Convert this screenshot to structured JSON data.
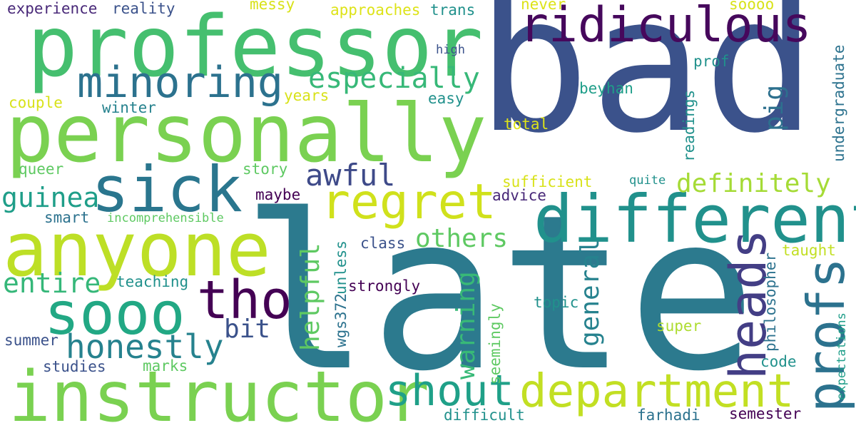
{
  "palette": {
    "bg": "#ffffff",
    "dark_purple": "#440154",
    "indigo": "#433e85",
    "navy": "#3b528b",
    "blue": "#2c728e",
    "teal": "#21918c",
    "green_teal": "#28ae80",
    "green": "#5ec962",
    "lime": "#addc30",
    "yellow": "#d6e21a"
  },
  "words": [
    {
      "id": "bad",
      "text": "bad"
    },
    {
      "id": "late",
      "text": "late"
    },
    {
      "id": "professor",
      "text": "professor"
    },
    {
      "id": "personally",
      "text": "personally"
    },
    {
      "id": "anyone",
      "text": "anyone"
    },
    {
      "id": "instructor",
      "text": "instructor"
    },
    {
      "id": "different",
      "text": "different"
    },
    {
      "id": "department",
      "text": "department"
    },
    {
      "id": "ridiculous",
      "text": "ridiculous"
    },
    {
      "id": "sick",
      "text": "sick"
    },
    {
      "id": "sooo",
      "text": "sooo"
    },
    {
      "id": "regret",
      "text": "regret"
    },
    {
      "id": "minoring",
      "text": "minoring"
    },
    {
      "id": "profs",
      "text": "profs"
    },
    {
      "id": "heads",
      "text": "heads"
    },
    {
      "id": "tho",
      "text": "tho"
    },
    {
      "id": "shout",
      "text": "shout"
    },
    {
      "id": "honestly",
      "text": "honestly"
    },
    {
      "id": "especially",
      "text": "especially"
    },
    {
      "id": "awful",
      "text": "awful"
    },
    {
      "id": "definitely",
      "text": "definitely"
    },
    {
      "id": "guinea",
      "text": "guinea"
    },
    {
      "id": "others",
      "text": "others"
    },
    {
      "id": "entire",
      "text": "entire"
    },
    {
      "id": "helpful",
      "text": "helpful"
    },
    {
      "id": "warning",
      "text": "warning"
    },
    {
      "id": "general",
      "text": "general"
    },
    {
      "id": "pig",
      "text": "pig"
    },
    {
      "id": "bit",
      "text": "bit"
    },
    {
      "id": "experience",
      "text": "experience"
    },
    {
      "id": "reality",
      "text": "reality"
    },
    {
      "id": "messy",
      "text": "messy"
    },
    {
      "id": "approaches",
      "text": "approaches"
    },
    {
      "id": "trans",
      "text": "trans"
    },
    {
      "id": "never",
      "text": "never"
    },
    {
      "id": "soooo",
      "text": "soooo"
    },
    {
      "id": "high",
      "text": "high"
    },
    {
      "id": "prof",
      "text": "prof"
    },
    {
      "id": "couple",
      "text": "couple"
    },
    {
      "id": "years",
      "text": "years"
    },
    {
      "id": "easy",
      "text": "easy"
    },
    {
      "id": "beyhan",
      "text": "beyhan"
    },
    {
      "id": "winter",
      "text": "winter"
    },
    {
      "id": "total",
      "text": "total"
    },
    {
      "id": "readings",
      "text": "readings"
    },
    {
      "id": "undergraduate",
      "text": "undergraduate"
    },
    {
      "id": "queer",
      "text": "queer"
    },
    {
      "id": "story",
      "text": "story"
    },
    {
      "id": "sufficient",
      "text": "sufficient"
    },
    {
      "id": "quite",
      "text": "quite"
    },
    {
      "id": "maybe",
      "text": "maybe"
    },
    {
      "id": "advice",
      "text": "advice"
    },
    {
      "id": "smart",
      "text": "smart"
    },
    {
      "id": "incomprehensible",
      "text": "incomprehensible"
    },
    {
      "id": "class",
      "text": "class"
    },
    {
      "id": "taught",
      "text": "taught"
    },
    {
      "id": "unless",
      "text": "unless"
    },
    {
      "id": "wgs372",
      "text": "wgs372"
    },
    {
      "id": "teaching",
      "text": "teaching"
    },
    {
      "id": "strongly",
      "text": "strongly"
    },
    {
      "id": "philosopher",
      "text": "philosopher"
    },
    {
      "id": "topic",
      "text": "topic"
    },
    {
      "id": "seemingly",
      "text": "seemingly"
    },
    {
      "id": "expectations",
      "text": "expectations"
    },
    {
      "id": "super",
      "text": "super"
    },
    {
      "id": "summer",
      "text": "summer"
    },
    {
      "id": "code",
      "text": "code"
    },
    {
      "id": "studies",
      "text": "studies"
    },
    {
      "id": "marks",
      "text": "marks"
    },
    {
      "id": "difficult",
      "text": "difficult"
    },
    {
      "id": "farhadi",
      "text": "farhadi"
    },
    {
      "id": "semester",
      "text": "semester"
    }
  ]
}
